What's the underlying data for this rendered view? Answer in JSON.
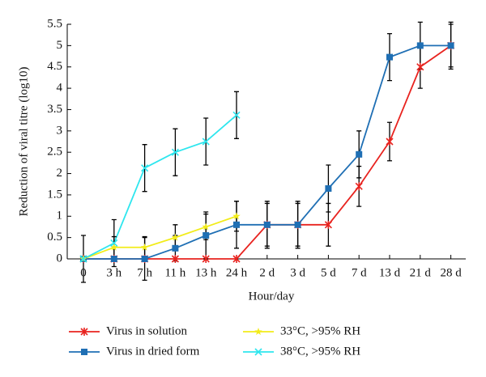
{
  "chart_data": {
    "type": "line",
    "x_label": "Hour/day",
    "y_label": "Reduction of viral titre (log10)",
    "categories": [
      "0",
      "3 h",
      "7 h",
      "11 h",
      "13 h",
      "24 h",
      "2 d",
      "3 d",
      "5 d",
      "7 d",
      "13 d",
      "21 d",
      "28 d"
    ],
    "ylim": [
      0,
      5.5
    ],
    "yticks": [
      0,
      0.5,
      1,
      1.5,
      2,
      2.5,
      3,
      3.5,
      4,
      4.5,
      5,
      5.5
    ],
    "series": [
      {
        "name": "Virus in solution",
        "color": "#e8231f",
        "marker": "asterisk",
        "values": [
          0,
          0,
          0,
          0,
          0,
          0,
          0.8,
          0.8,
          0.8,
          1.7,
          2.75,
          4.5,
          5.0
        ],
        "errors": [
          0.55,
          null,
          null,
          null,
          null,
          null,
          0.5,
          0.5,
          0.5,
          0.47,
          0.45,
          0.5,
          0.5
        ]
      },
      {
        "name": "Virus in dried form",
        "color": "#1f6fb4",
        "marker": "square",
        "values": [
          0,
          0,
          0,
          0.25,
          0.55,
          0.8,
          0.8,
          0.8,
          1.65,
          2.45,
          4.73,
          5.0,
          5.0
        ],
        "errors": [
          null,
          null,
          0.5,
          0.3,
          0.55,
          0.55,
          0.55,
          0.55,
          0.55,
          0.55,
          0.55,
          0.55,
          0.55
        ]
      },
      {
        "name": "33°C, >95% RH",
        "color": "#f2ec1a",
        "marker": "star",
        "values": [
          0,
          0.27,
          0.27,
          0.5,
          0.75,
          1.0,
          null,
          null,
          null,
          null,
          null,
          null,
          null
        ],
        "errors": [
          null,
          0.25,
          0.25,
          0.3,
          0.3,
          0.35,
          null,
          null,
          null,
          null,
          null,
          null,
          null
        ]
      },
      {
        "name": "38°C, >95% RH",
        "color": "#2ee6ee",
        "marker": "x",
        "values": [
          0,
          0.37,
          2.13,
          2.5,
          2.75,
          3.37,
          null,
          null,
          null,
          null,
          null,
          null,
          null
        ],
        "errors": [
          null,
          0.55,
          0.55,
          0.55,
          0.55,
          0.55,
          null,
          null,
          null,
          null,
          null,
          null,
          null
        ]
      }
    ]
  }
}
